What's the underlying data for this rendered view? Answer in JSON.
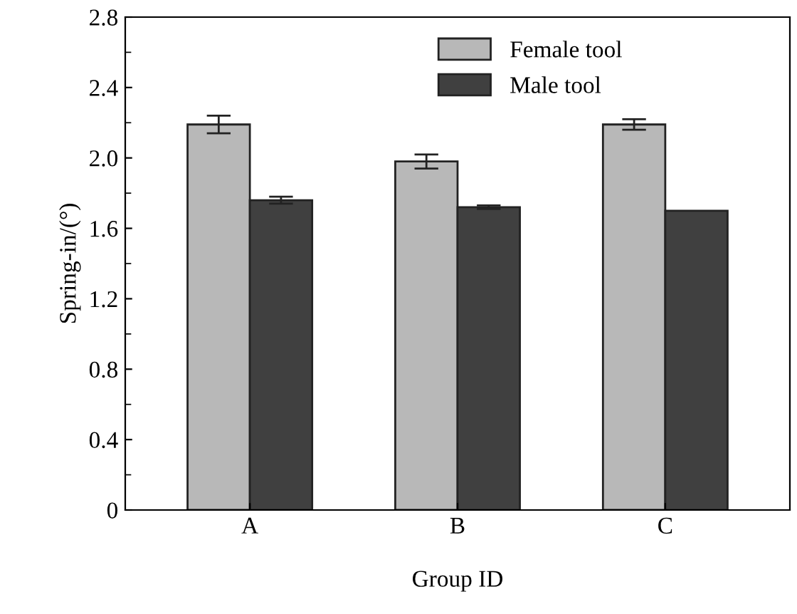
{
  "chart_data": {
    "type": "bar",
    "xlabel": "Group ID",
    "ylabel": "Spring-in/(°)",
    "categories": [
      "A",
      "B",
      "C"
    ],
    "series": [
      {
        "name": "Female tool",
        "color": "#b8b8b8",
        "values": [
          2.19,
          1.98,
          2.19
        ],
        "errors": [
          0.05,
          0.04,
          0.03
        ]
      },
      {
        "name": "Male tool",
        "color": "#404040",
        "values": [
          1.76,
          1.72,
          1.7
        ],
        "errors": [
          0.02,
          0.01,
          null
        ]
      }
    ],
    "ylim": [
      0,
      2.8
    ],
    "yticks": [
      0,
      0.4,
      0.8,
      1.2,
      1.6,
      {
        "value": 2.0,
        "label": "2.0"
      },
      2.4,
      2.8
    ],
    "grid": false,
    "legend": "top right"
  }
}
